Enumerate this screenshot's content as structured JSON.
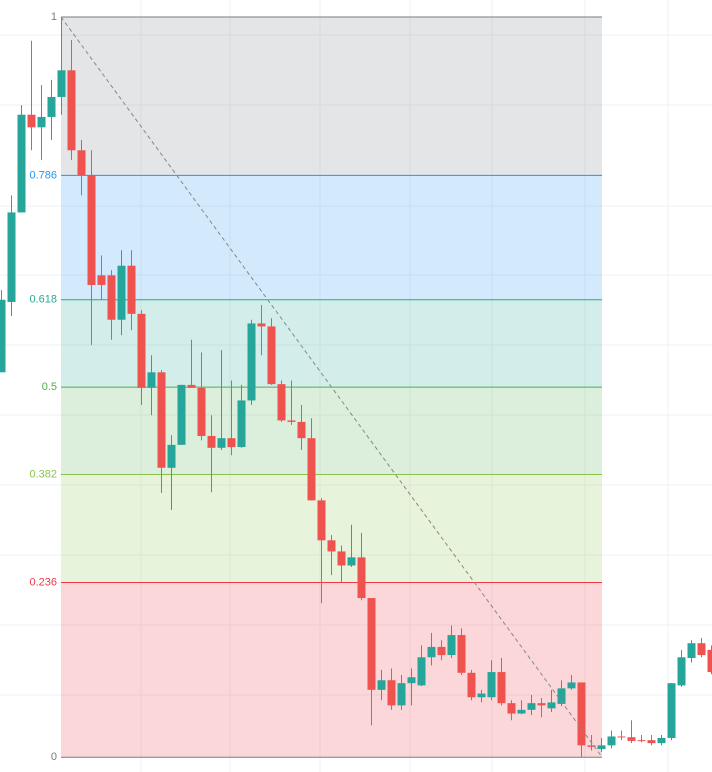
{
  "chart_data": {
    "type": "candlestick",
    "up_color": "#26a69a",
    "down_color": "#ef5350",
    "ylim": [
      -0.02,
      1.023
    ],
    "fib_levels": [
      1,
      0.786,
      0.618,
      0.5,
      0.382,
      0.236,
      0
    ],
    "fib_colors": [
      "#787b86",
      "#2196f3",
      "#22ab94",
      "#4caf50",
      "#8bc34a",
      "#f23645",
      "#787b86"
    ],
    "open": [
      0.52,
      0.615,
      0.736,
      0.868,
      0.851,
      0.865,
      0.892,
      0.928,
      0.82,
      0.786,
      0.651,
      0.651,
      0.591,
      0.664,
      0.599,
      0.499,
      0.52,
      0.391,
      0.422,
      0.503,
      0.499,
      0.434,
      0.418,
      0.431,
      0.419,
      0.482,
      0.586,
      0.582,
      0.504,
      0.455,
      0.453,
      0.431,
      0.347,
      0.293,
      0.278,
      0.259,
      0.27,
      0.215,
      0.091,
      0.104,
      0.07,
      0.1,
      0.097,
      0.135,
      0.149,
      0.138,
      0.165,
      0.114,
      0.081,
      0.081,
      0.115,
      0.073,
      0.059,
      0.064,
      0.073,
      0.066,
      0.072,
      0.093,
      0.101,
      0.016,
      0.011,
      0.016,
      0.028,
      0.027,
      0.023,
      0.023,
      0.019,
      0.026,
      0.097,
      0.134,
      0.154,
      0.145
    ],
    "high": [
      0.631,
      0.759,
      0.881,
      0.968,
      0.908,
      0.915,
      1.0,
      0.969,
      0.834,
      0.82,
      0.678,
      0.658,
      0.685,
      0.685,
      0.604,
      0.543,
      0.523,
      0.435,
      0.503,
      0.564,
      0.547,
      0.462,
      0.55,
      0.509,
      0.503,
      0.591,
      0.611,
      0.593,
      0.509,
      0.509,
      0.476,
      0.458,
      0.35,
      0.3,
      0.286,
      0.314,
      0.303,
      0.215,
      0.118,
      0.12,
      0.111,
      0.12,
      0.151,
      0.168,
      0.158,
      0.178,
      0.174,
      0.118,
      0.091,
      0.131,
      0.134,
      0.077,
      0.077,
      0.084,
      0.08,
      0.091,
      0.104,
      0.111,
      0.101,
      0.03,
      0.026,
      0.036,
      0.036,
      0.05,
      0.03,
      0.03,
      0.03,
      0.1,
      0.145,
      0.158,
      0.161,
      0.151
    ],
    "low": [
      0.52,
      0.596,
      0.736,
      0.82,
      0.807,
      0.834,
      0.868,
      0.807,
      0.759,
      0.557,
      0.618,
      0.564,
      0.57,
      0.577,
      0.476,
      0.462,
      0.357,
      0.334,
      0.422,
      0.499,
      0.428,
      0.358,
      0.415,
      0.408,
      0.418,
      0.476,
      0.543,
      0.503,
      0.453,
      0.449,
      0.415,
      0.347,
      0.208,
      0.246,
      0.236,
      0.257,
      0.212,
      0.043,
      0.077,
      0.064,
      0.064,
      0.07,
      0.096,
      0.124,
      0.131,
      0.134,
      0.111,
      0.077,
      0.074,
      0.077,
      0.07,
      0.05,
      0.058,
      0.057,
      0.054,
      0.061,
      0.069,
      0.091,
      0,
      0.009,
      0.007,
      0.012,
      0.023,
      0.019,
      0.02,
      0.016,
      0.016,
      0.023,
      0.095,
      0.128,
      0.135,
      0.112
    ],
    "close": [
      0.618,
      0.736,
      0.868,
      0.851,
      0.865,
      0.892,
      0.928,
      0.82,
      0.786,
      0.638,
      0.638,
      0.591,
      0.664,
      0.599,
      0.499,
      0.52,
      0.391,
      0.422,
      0.503,
      0.499,
      0.434,
      0.418,
      0.431,
      0.419,
      0.482,
      0.586,
      0.582,
      0.504,
      0.455,
      0.453,
      0.431,
      0.347,
      0.293,
      0.278,
      0.259,
      0.27,
      0.215,
      0.091,
      0.104,
      0.07,
      0.1,
      0.108,
      0.135,
      0.149,
      0.138,
      0.165,
      0.114,
      0.081,
      0.086,
      0.115,
      0.073,
      0.059,
      0.064,
      0.073,
      0.07,
      0.074,
      0.093,
      0.101,
      0.016,
      0.014,
      0.016,
      0.028,
      0.027,
      0.022,
      0.022,
      0.019,
      0.026,
      0.1,
      0.135,
      0.154,
      0.138,
      0.115
    ]
  }
}
